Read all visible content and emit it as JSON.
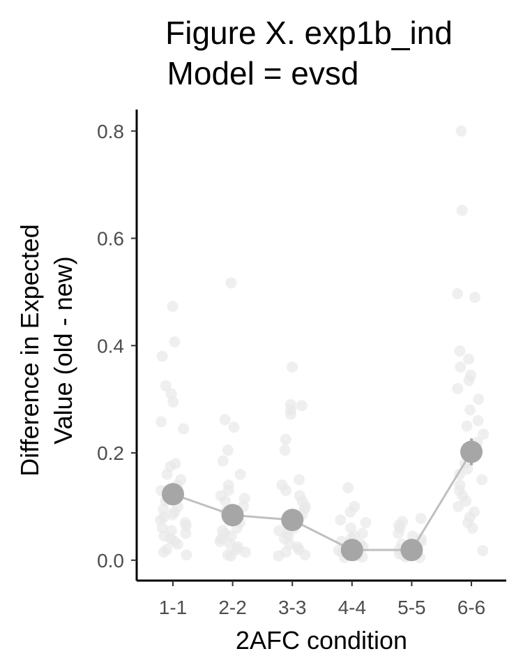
{
  "chart_data": {
    "type": "scatter",
    "title_lines": [
      "Figure X. exp1b_ind",
      "Model = evsd"
    ],
    "xlabel": "2AFC condition",
    "ylabel_lines": [
      "Difference in Expected",
      "Value (old - new)"
    ],
    "categories": [
      "1-1",
      "2-2",
      "3-3",
      "4-4",
      "5-5",
      "6-6"
    ],
    "yticks": [
      "0.0",
      "0.2",
      "0.4",
      "0.6",
      "0.8"
    ],
    "ytick_values": [
      0.0,
      0.2,
      0.4,
      0.6,
      0.8
    ],
    "ylim": [
      -0.038,
      0.84
    ],
    "grid": false,
    "legend": "none",
    "colors": {
      "mean": "#a6a6a6",
      "line": "#bfbfbf",
      "points": "#e8e8e8",
      "axis": "#000000"
    },
    "series": [
      {
        "values": [
          0.123,
          0.084,
          0.075,
          0.019,
          0.019,
          0.202
        ],
        "error": [
          0.005,
          0.005,
          0.005,
          0.003,
          0.003,
          0.025
        ]
      }
    ],
    "individual_points": [
      [
        0.473,
        0.407,
        0.38,
        0.325,
        0.31,
        0.295,
        0.258,
        0.245,
        0.18,
        0.175,
        0.16,
        0.15,
        0.14,
        0.13,
        0.12,
        0.11,
        0.1,
        0.095,
        0.09,
        0.085,
        0.08,
        0.075,
        0.07,
        0.065,
        0.06,
        0.055,
        0.05,
        0.045,
        0.04,
        0.035,
        0.03,
        0.02,
        0.015,
        0.01
      ],
      [
        0.517,
        0.262,
        0.248,
        0.205,
        0.185,
        0.16,
        0.14,
        0.13,
        0.12,
        0.115,
        0.11,
        0.1,
        0.095,
        0.09,
        0.08,
        0.075,
        0.07,
        0.06,
        0.055,
        0.05,
        0.045,
        0.04,
        0.035,
        0.03,
        0.025,
        0.02,
        0.015,
        0.01,
        0.008
      ],
      [
        0.36,
        0.29,
        0.288,
        0.28,
        0.272,
        0.225,
        0.205,
        0.15,
        0.14,
        0.13,
        0.12,
        0.11,
        0.1,
        0.095,
        0.085,
        0.08,
        0.07,
        0.06,
        0.055,
        0.05,
        0.045,
        0.04,
        0.03,
        0.025,
        0.02,
        0.015,
        0.01,
        0.008
      ],
      [
        0.135,
        0.1,
        0.09,
        0.075,
        0.07,
        0.06,
        0.05,
        0.045,
        0.04,
        0.035,
        0.03,
        0.025,
        0.02,
        0.018,
        0.015,
        0.012,
        0.01,
        0.008,
        0.006,
        0.005
      ],
      [
        0.078,
        0.072,
        0.065,
        0.06,
        0.05,
        0.045,
        0.04,
        0.035,
        0.03,
        0.025,
        0.02,
        0.018,
        0.015,
        0.012,
        0.01,
        0.008,
        0.006,
        0.005
      ],
      [
        0.8,
        0.652,
        0.497,
        0.49,
        0.39,
        0.375,
        0.36,
        0.345,
        0.335,
        0.32,
        0.3,
        0.28,
        0.26,
        0.25,
        0.235,
        0.22,
        0.2,
        0.18,
        0.17,
        0.16,
        0.15,
        0.14,
        0.13,
        0.12,
        0.11,
        0.1,
        0.09,
        0.08,
        0.07,
        0.06,
        0.018
      ]
    ]
  }
}
